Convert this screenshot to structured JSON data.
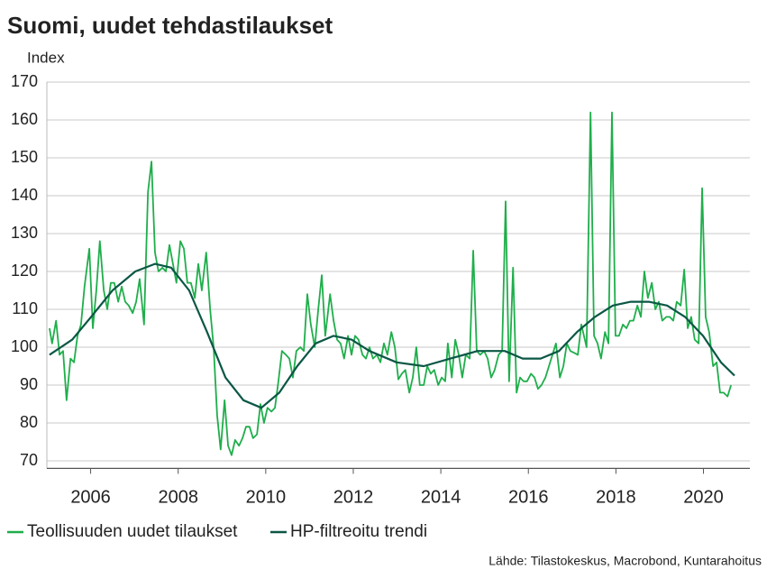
{
  "chart_data": {
    "type": "line",
    "title": "Suomi, uudet tehdastilaukset",
    "y_label": "Index",
    "source": "Lähde: Tilastokeskus, Macrobond, Kuntarahoitus",
    "xlim": [
      2005,
      2021.06
    ],
    "xticks": [
      2006,
      2008,
      2010,
      2012,
      2014,
      2016,
      2018,
      2020
    ],
    "ylim": [
      68,
      170
    ],
    "yticks": [
      70,
      80,
      90,
      100,
      110,
      120,
      130,
      140,
      150,
      160,
      170
    ],
    "grid": true,
    "legend": "bottom",
    "series": [
      {
        "name": "Teollisuuden uudet tilaukset",
        "color": "#1fae4b",
        "x": [
          2005.06,
          2005.12,
          2005.21,
          2005.29,
          2005.37,
          2005.45,
          2005.54,
          2005.62,
          2005.7,
          2005.78,
          2005.86,
          2005.97,
          2006.05,
          2006.13,
          2006.21,
          2006.3,
          2006.38,
          2006.46,
          2006.54,
          2006.63,
          2006.71,
          2006.79,
          2006.87,
          2006.96,
          2007.04,
          2007.12,
          2007.22,
          2007.31,
          2007.39,
          2007.47,
          2007.55,
          2007.64,
          2007.72,
          2007.8,
          2007.88,
          2007.96,
          2008.05,
          2008.13,
          2008.21,
          2008.29,
          2008.38,
          2008.46,
          2008.54,
          2008.64,
          2008.73,
          2008.81,
          2008.89,
          2008.97,
          2009.06,
          2009.14,
          2009.22,
          2009.3,
          2009.39,
          2009.47,
          2009.55,
          2009.63,
          2009.71,
          2009.8,
          2009.88,
          2009.96,
          2010.04,
          2010.13,
          2010.21,
          2010.29,
          2010.37,
          2010.46,
          2010.54,
          2010.62,
          2010.7,
          2010.79,
          2010.87,
          2010.95,
          2011.03,
          2011.12,
          2011.2,
          2011.28,
          2011.36,
          2011.47,
          2011.55,
          2011.63,
          2011.71,
          2011.79,
          2011.88,
          2011.96,
          2012.04,
          2012.12,
          2012.21,
          2012.29,
          2012.37,
          2012.45,
          2012.54,
          2012.62,
          2012.7,
          2012.78,
          2012.87,
          2012.95,
          2013.03,
          2013.11,
          2013.19,
          2013.28,
          2013.36,
          2013.44,
          2013.52,
          2013.61,
          2013.69,
          2013.77,
          2013.85,
          2013.94,
          2014.02,
          2014.1,
          2014.16,
          2014.25,
          2014.33,
          2014.41,
          2014.49,
          2014.57,
          2014.66,
          2014.74,
          2014.82,
          2014.9,
          2014.99,
          2015.07,
          2015.15,
          2015.23,
          2015.32,
          2015.4,
          2015.48,
          2015.56,
          2015.65,
          2015.73,
          2015.81,
          2015.89,
          2015.97,
          2016.06,
          2016.14,
          2016.22,
          2016.3,
          2016.39,
          2016.47,
          2016.63,
          2016.72,
          2016.8,
          2016.88,
          2016.96,
          2017.05,
          2017.13,
          2017.21,
          2017.33,
          2017.42,
          2017.5,
          2017.58,
          2017.66,
          2017.75,
          2017.83,
          2017.91,
          2017.99,
          2018.07,
          2018.16,
          2018.24,
          2018.32,
          2018.4,
          2018.49,
          2018.57,
          2018.65,
          2018.73,
          2018.82,
          2018.9,
          2018.98,
          2019.06,
          2019.15,
          2019.23,
          2019.31,
          2019.39,
          2019.48,
          2019.56,
          2019.64,
          2019.72,
          2019.8,
          2019.89,
          2019.97,
          2020.05,
          2020.13,
          2020.22,
          2020.3,
          2020.38,
          2020.46,
          2020.55,
          2020.63
        ],
        "values": [
          105,
          101,
          107,
          98,
          99,
          86,
          97,
          96,
          103,
          106,
          116,
          126,
          105,
          115,
          128,
          115,
          110,
          117,
          117,
          112,
          116,
          112,
          111,
          109,
          112,
          118,
          106,
          141,
          149,
          125,
          120,
          121,
          120,
          127,
          122,
          117,
          128,
          126,
          117,
          117,
          113,
          122,
          115,
          125,
          110,
          100,
          82,
          73,
          86,
          74,
          71.5,
          75.5,
          74,
          76,
          79,
          79,
          76,
          77,
          85,
          80,
          84,
          83,
          84,
          91,
          99,
          98,
          97,
          92,
          99,
          100,
          99,
          114,
          106,
          100,
          110,
          119,
          103,
          114,
          107,
          102,
          101,
          97,
          103,
          98,
          103,
          102,
          98,
          97,
          100,
          97,
          98,
          96,
          101,
          98,
          104,
          100,
          91.5,
          93,
          94,
          88,
          92,
          100,
          90,
          90,
          95,
          93,
          94,
          90,
          92,
          91,
          101,
          92,
          102,
          98,
          92,
          98,
          97,
          125.5,
          99,
          98,
          99,
          97,
          92,
          94,
          98,
          99,
          138.5,
          91,
          121,
          88,
          92,
          91,
          91,
          93,
          92,
          89,
          90,
          92,
          95,
          101,
          92,
          95,
          101,
          99,
          98.5,
          98,
          106,
          100,
          162,
          103,
          101,
          97,
          104,
          101,
          162,
          103,
          103,
          106,
          105,
          107,
          107,
          111,
          108,
          120,
          113,
          117,
          110,
          112,
          107,
          108,
          108,
          107,
          112,
          111,
          120.5,
          105,
          108,
          102,
          101,
          142,
          108,
          104,
          95,
          96,
          88,
          88,
          87,
          90
        ]
      },
      {
        "name": "HP-filtreoitu trendi",
        "color": "#0b5745",
        "x": [
          2005.06,
          2005.58,
          2006.01,
          2006.5,
          2007.02,
          2007.47,
          2007.84,
          2008.25,
          2008.66,
          2009.08,
          2009.49,
          2009.9,
          2010.31,
          2010.72,
          2011.14,
          2011.55,
          2011.96,
          2012.37,
          2012.99,
          2013.61,
          2014.22,
          2014.84,
          2015.46,
          2015.87,
          2016.28,
          2016.7,
          2017.11,
          2017.52,
          2017.93,
          2018.34,
          2018.75,
          2019.17,
          2019.58,
          2019.99,
          2020.4,
          2020.71
        ],
        "values": [
          98,
          102,
          108,
          115,
          120,
          122,
          121,
          115,
          104,
          92,
          86,
          84,
          88,
          95,
          101,
          103,
          102,
          99,
          96,
          95,
          97,
          99,
          99,
          97,
          97,
          99,
          104,
          108,
          111,
          112,
          112,
          111,
          108,
          103,
          96,
          92.5
        ]
      }
    ]
  }
}
